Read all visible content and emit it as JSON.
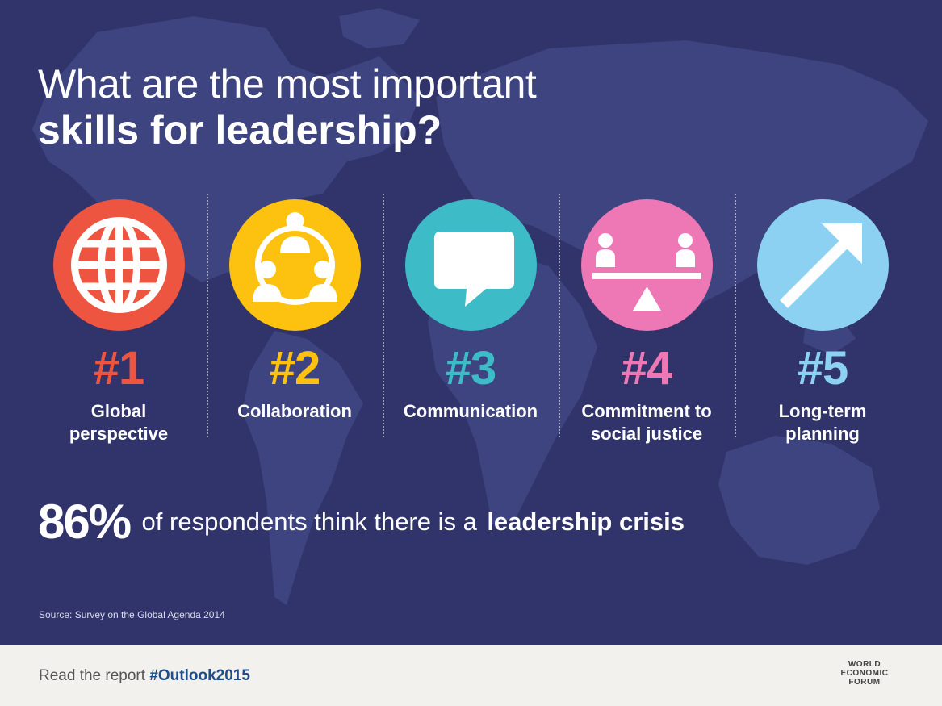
{
  "title": {
    "line1": "What are the most important",
    "line2": "skills for leadership?"
  },
  "skills": [
    {
      "rank": "#1",
      "label": "Global\nperspective",
      "color": "#ee5540",
      "rank_color": "#ee5540",
      "icon": "globe-icon"
    },
    {
      "rank": "#2",
      "label": "Collaboration",
      "color": "#fdc20f",
      "rank_color": "#fdc20f",
      "icon": "people-circle-icon"
    },
    {
      "rank": "#3",
      "label": "Communication",
      "color": "#3dbcc7",
      "rank_color": "#3dbcc7",
      "icon": "speech-bubble-icon"
    },
    {
      "rank": "#4",
      "label": "Commitment to\nsocial justice",
      "color": "#ee78b5",
      "rank_color": "#ee78b5",
      "icon": "balance-scale-icon"
    },
    {
      "rank": "#5",
      "label": "Long-term\nplanning",
      "color": "#8cd1f2",
      "rank_color": "#8cd1f2",
      "icon": "arrow-up-right-icon"
    }
  ],
  "stat": {
    "percent": "86%",
    "middle": "of respondents think there is a",
    "strong": "leadership crisis"
  },
  "source": "Source: Survey on the Global Agenda 2014",
  "footer": {
    "read_text": "Read the report",
    "hashtag": "#Outlook2015",
    "logo_lines": [
      "WORLD",
      "ECONOMIC",
      "FORUM"
    ]
  },
  "colors": {
    "background": "#31346b",
    "map": "#3e4582",
    "footer_bg": "#f2f1ee",
    "hashtag": "#1f4d87"
  }
}
